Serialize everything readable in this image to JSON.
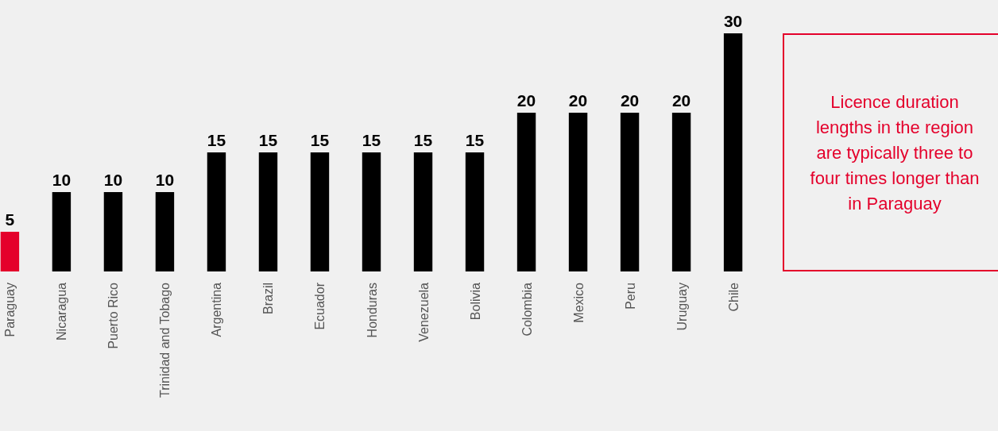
{
  "chart_data": {
    "type": "bar",
    "categories": [
      "Paraguay",
      "Nicaragua",
      "Puerto Rico",
      "Trinidad and Tobago",
      "Argentina",
      "Brazil",
      "Ecuador",
      "Honduras",
      "Venezuela",
      "Bolivia",
      "Colombia",
      "Mexico",
      "Peru",
      "Uruguay",
      "Chile"
    ],
    "values": [
      5,
      10,
      10,
      10,
      15,
      15,
      15,
      15,
      15,
      15,
      20,
      20,
      20,
      20,
      30
    ],
    "colors": [
      "#e4002b",
      "#000000",
      "#000000",
      "#000000",
      "#000000",
      "#000000",
      "#000000",
      "#000000",
      "#000000",
      "#000000",
      "#000000",
      "#000000",
      "#000000",
      "#000000",
      "#000000"
    ],
    "data_labels": true,
    "annotations": [
      "Licence duration lengths in the region are typically three to four times longer than in Paraguay"
    ]
  }
}
